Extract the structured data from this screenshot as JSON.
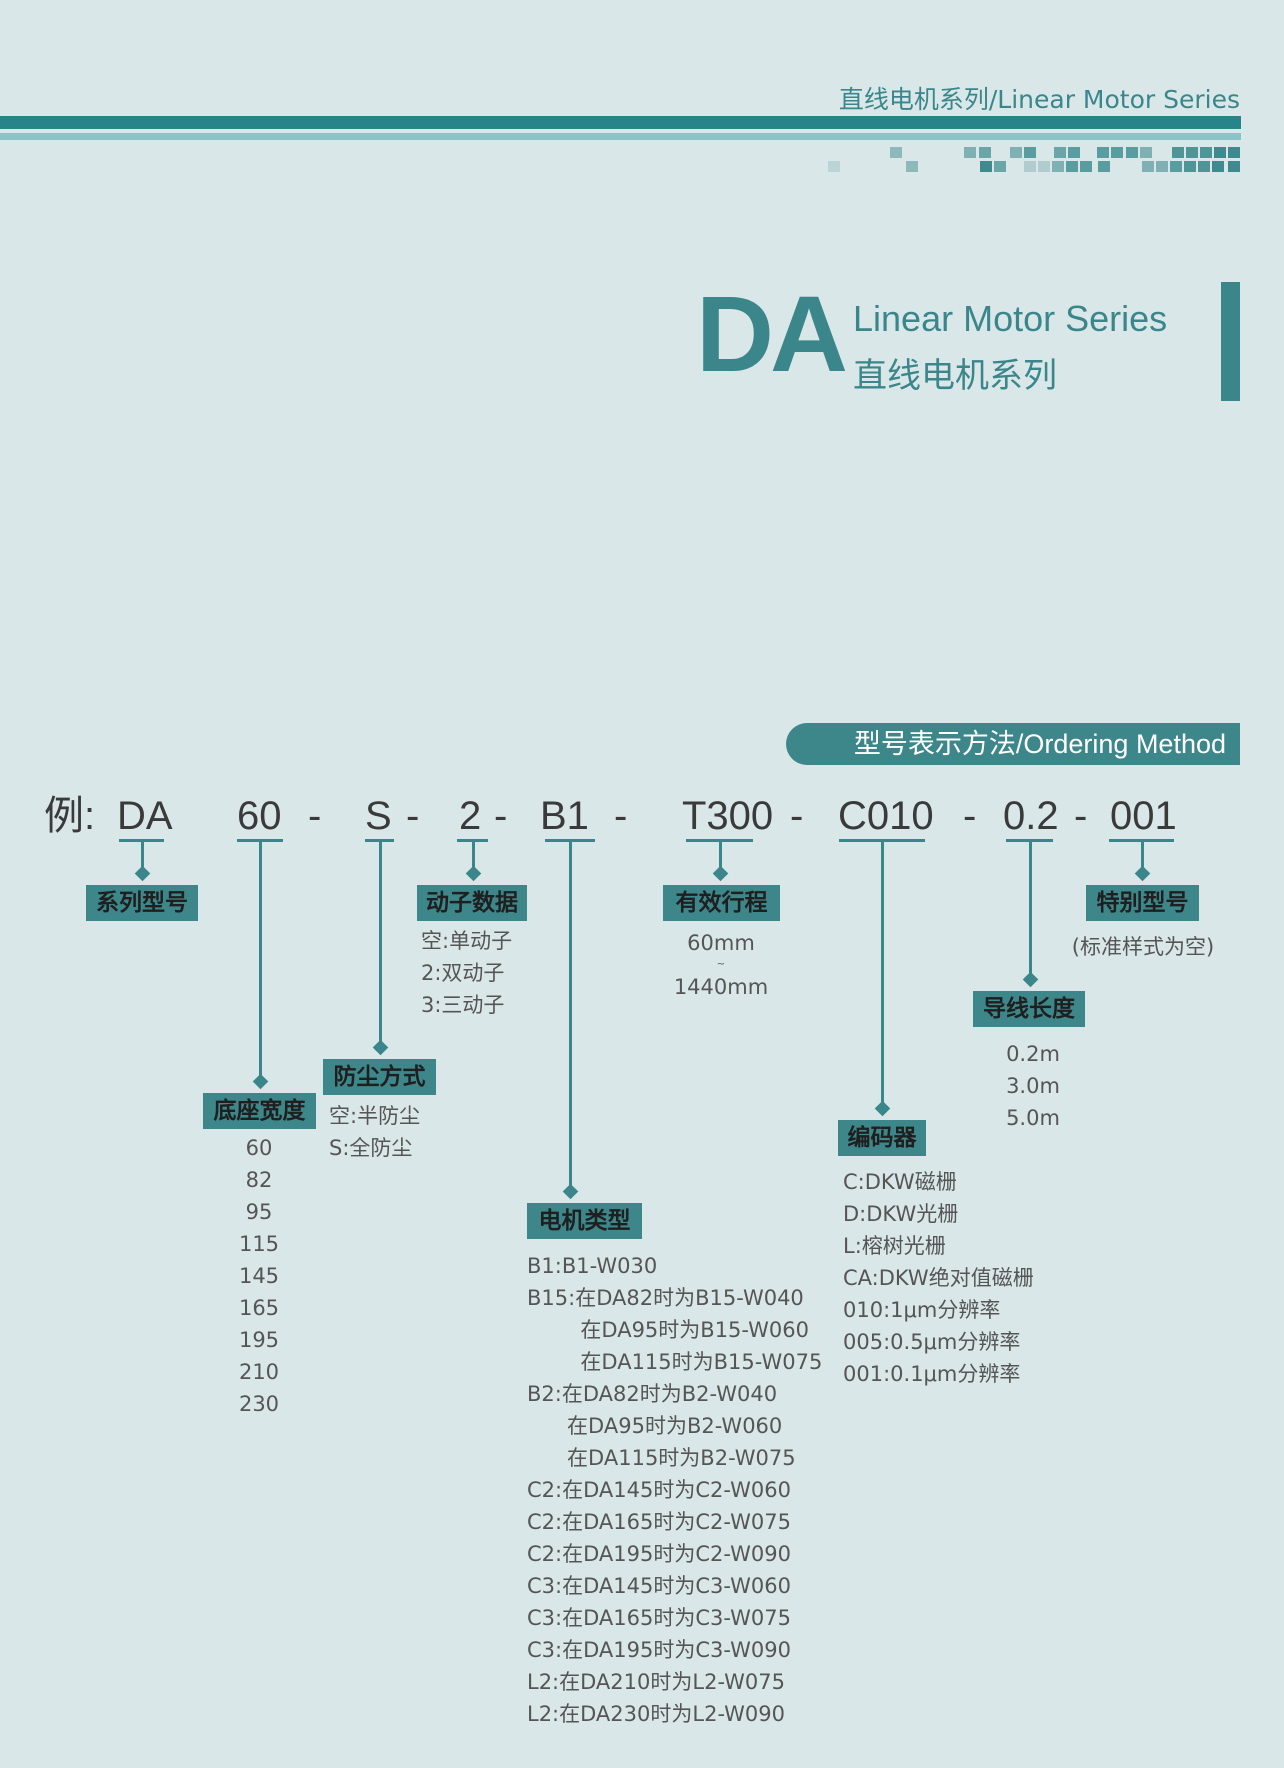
{
  "header": {
    "text": "直线电机系列/Linear Motor Series"
  },
  "title": {
    "big": "DA",
    "en": "Linear Motor Series",
    "cn": "直线电机系列"
  },
  "ordering_badge": "型号表示方法/Ordering Method",
  "colors": {
    "accent": "#3b868b",
    "bar_dark": "#278589",
    "bar_light": "#8bc4c8",
    "background": "#d9e7e8"
  },
  "example": {
    "prefix": "例:",
    "parts": [
      "DA",
      "60",
      "S",
      "2",
      "B1",
      "T300",
      "C010",
      "0.2",
      "001"
    ],
    "separator": "-"
  },
  "fields": {
    "series": {
      "label": "系列型号"
    },
    "base_width": {
      "label": "底座宽度",
      "options": [
        "60",
        "82",
        "95",
        "115",
        "145",
        "165",
        "195",
        "210",
        "230"
      ]
    },
    "dust": {
      "label": "防尘方式",
      "options": [
        "空:半防尘",
        "S:全防尘"
      ]
    },
    "mover": {
      "label": "动子数据",
      "options": [
        "空:单动子",
        "2:双动子",
        "3:三动子"
      ]
    },
    "motor_type": {
      "label": "电机类型",
      "options": [
        "B1:B1-W030",
        "B15:在DA82时为B15-W040",
        "        在DA95时为B15-W060",
        "        在DA115时为B15-W075",
        "B2:在DA82时为B2-W040",
        "      在DA95时为B2-W060",
        "      在DA115时为B2-W075",
        "C2:在DA145时为C2-W060",
        "C2:在DA165时为C2-W075",
        "C2:在DA195时为C2-W090",
        "C3:在DA145时为C3-W060",
        "C3:在DA165时为C3-W075",
        "C3:在DA195时为C3-W090",
        "L2:在DA210时为L2-W075",
        "L2:在DA230时为L2-W090"
      ]
    },
    "stroke": {
      "label": "有效行程",
      "min": "60mm",
      "range_mark": "~",
      "max": "1440mm"
    },
    "encoder": {
      "label": "编码器",
      "options": [
        "C:DKW磁栅",
        "D:DKW光栅",
        "L:榕树光栅",
        "CA:DKW绝对值磁栅",
        "010:1μm分辨率",
        "005:0.5μm分辨率",
        "001:0.1μm分辨率"
      ]
    },
    "cable": {
      "label": "导线长度",
      "options": [
        "0.2m",
        "3.0m",
        "5.0m"
      ]
    },
    "special": {
      "label": "特别型号",
      "note": "(标准样式为空)"
    }
  }
}
